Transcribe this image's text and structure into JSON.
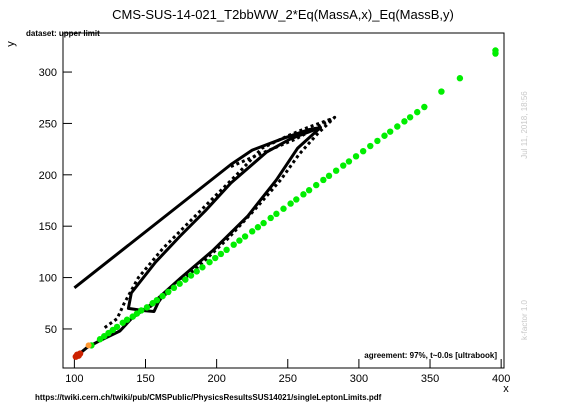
{
  "chart_data": {
    "type": "scatter",
    "title": "CMS-SUS-14-021_T2bbWW_2*Eq(MassA,x)_Eq(MassB,y)",
    "dataset_label": "dataset: upper limit",
    "agreement_label": "agreement: 97%, t~0.0s [ultrabook]",
    "source_url": "https://twiki.cern.ch/twiki/pub/CMSPublic/PhysicsResultsSUS14021/singleLeptonLimits.pdf",
    "side_date": "Jul 11, 2018, 18:56",
    "side_kfactor": "k-factor 1.0",
    "xlabel": "x",
    "ylabel": "y",
    "xlim": [
      92,
      402
    ],
    "ylim": [
      12,
      338
    ],
    "xticks": [
      100,
      150,
      200,
      250,
      300,
      350,
      400
    ],
    "yticks": [
      50,
      100,
      150,
      200,
      250,
      300
    ],
    "colors": {
      "green": "#00ee00",
      "red": "#cc2200",
      "orange": "#ff9933",
      "line": "#000000"
    },
    "green_points": [
      [
        112,
        34
      ],
      [
        118,
        40
      ],
      [
        121,
        43
      ],
      [
        124,
        46
      ],
      [
        127,
        49
      ],
      [
        130,
        52
      ],
      [
        134,
        56
      ],
      [
        137,
        59
      ],
      [
        141,
        62
      ],
      [
        144,
        65
      ],
      [
        147,
        68
      ],
      [
        151,
        71
      ],
      [
        155,
        75
      ],
      [
        158,
        78
      ],
      [
        162,
        82
      ],
      [
        166,
        86
      ],
      [
        170,
        90
      ],
      [
        174,
        94
      ],
      [
        178,
        98
      ],
      [
        182,
        102
      ],
      [
        186,
        106
      ],
      [
        190,
        110
      ],
      [
        195,
        115
      ],
      [
        199,
        119
      ],
      [
        203,
        123
      ],
      [
        207,
        127
      ],
      [
        212,
        132
      ],
      [
        216,
        136
      ],
      [
        220,
        140
      ],
      [
        225,
        145
      ],
      [
        229,
        149
      ],
      [
        233,
        153
      ],
      [
        238,
        158
      ],
      [
        242,
        162
      ],
      [
        247,
        167
      ],
      [
        252,
        172
      ],
      [
        256,
        176
      ],
      [
        261,
        181
      ],
      [
        265,
        185
      ],
      [
        270,
        190
      ],
      [
        275,
        195
      ],
      [
        279,
        199
      ],
      [
        284,
        204
      ],
      [
        289,
        209
      ],
      [
        293,
        213
      ],
      [
        298,
        218
      ],
      [
        303,
        223
      ],
      [
        308,
        228
      ],
      [
        313,
        233
      ],
      [
        318,
        238
      ],
      [
        322,
        242
      ],
      [
        327,
        247
      ],
      [
        332,
        252
      ],
      [
        336,
        256
      ],
      [
        341,
        261
      ],
      [
        346,
        266
      ],
      [
        358,
        281
      ],
      [
        371,
        294
      ],
      [
        396,
        318
      ],
      [
        396,
        321
      ]
    ],
    "red_points": [
      [
        101,
        23
      ],
      [
        102,
        25
      ],
      [
        103,
        24
      ],
      [
        104,
        26
      ]
    ],
    "orange_points": [
      [
        110,
        34
      ]
    ],
    "solid_contours": [
      [
        [
          100,
          90
        ],
        [
          210,
          210
        ],
        [
          225,
          224
        ],
        [
          248,
          236
        ],
        [
          265,
          244
        ],
        [
          273,
          246
        ],
        [
          257,
          226
        ],
        [
          242,
          195
        ],
        [
          222,
          160
        ],
        [
          197,
          126
        ],
        [
          175,
          100
        ],
        [
          155,
          75
        ],
        [
          140,
          60
        ],
        [
          132,
          48
        ],
        [
          117,
          38
        ],
        [
          109,
          32
        ],
        [
          101,
          23
        ]
      ],
      [
        [
          273,
          246
        ],
        [
          252,
          235
        ],
        [
          235,
          222
        ],
        [
          210,
          192
        ],
        [
          192,
          165
        ],
        [
          174,
          140
        ],
        [
          157,
          115
        ],
        [
          140,
          85
        ],
        [
          138,
          70
        ],
        [
          148,
          68
        ],
        [
          156,
          67
        ],
        [
          159,
          76
        ],
        [
          162,
          82
        ]
      ]
    ],
    "dotted_contours": [
      [
        [
          210,
          208
        ],
        [
          230,
          220
        ],
        [
          256,
          235
        ],
        [
          283,
          256
        ],
        [
          271,
          240
        ],
        [
          258,
          220
        ],
        [
          245,
          195
        ],
        [
          228,
          168
        ],
        [
          208,
          138
        ],
        [
          185,
          108
        ],
        [
          168,
          88
        ],
        [
          150,
          68
        ]
      ],
      [
        [
          280,
          254
        ],
        [
          264,
          246
        ],
        [
          250,
          238
        ],
        [
          232,
          226
        ],
        [
          214,
          200
        ],
        [
          198,
          178
        ],
        [
          180,
          153
        ],
        [
          162,
          128
        ],
        [
          145,
          100
        ],
        [
          135,
          75
        ],
        [
          130,
          60
        ],
        [
          120,
          50
        ]
      ]
    ]
  }
}
